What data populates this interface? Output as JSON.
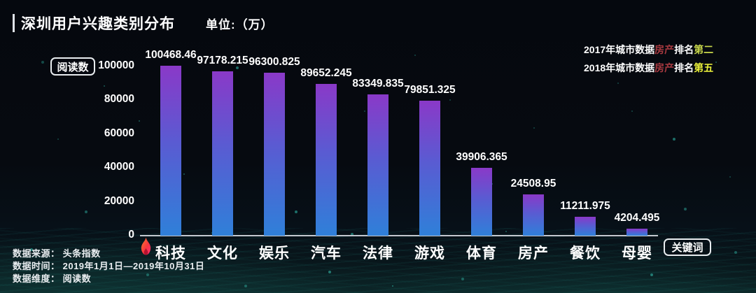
{
  "header": {
    "title": "深圳用户兴趣类别分布",
    "unit_label": "单位:（万）"
  },
  "legend": {
    "lines": [
      {
        "segments": [
          {
            "text": "2017年城市数据",
            "color": "#ffffff"
          },
          {
            "text": "房产",
            "color": "#a93a40"
          },
          {
            "text": "排名",
            "color": "#ffffff"
          },
          {
            "text": "第二",
            "color": "#c9d84b"
          }
        ]
      },
      {
        "segments": [
          {
            "text": "2018年城市数据",
            "color": "#ffffff"
          },
          {
            "text": "房产",
            "color": "#a93a40"
          },
          {
            "text": "排名",
            "color": "#ffffff"
          },
          {
            "text": "第五",
            "color": "#ecf23a"
          }
        ]
      }
    ]
  },
  "badges": {
    "reading": "阅读数",
    "keyword": "关键词"
  },
  "footer": {
    "source": "数据来源： 头条指数",
    "time": "数据时间： 2019年1月1日—2019年10月31日",
    "dimension": "数据维度： 阅读数"
  },
  "chart_data": {
    "type": "bar",
    "title": "深圳用户兴趣类别分布",
    "unit": "万",
    "ylabel": "阅读数",
    "xlabel": "关键词",
    "categories": [
      "科技",
      "文化",
      "娱乐",
      "汽车",
      "法律",
      "游戏",
      "体育",
      "房产",
      "餐饮",
      "母婴"
    ],
    "values": [
      100468.46,
      97178.215,
      96300.825,
      89652.245,
      83349.835,
      79851.325,
      39906.365,
      24508.95,
      11211.975,
      4204.495
    ],
    "value_labels": [
      "100468.46",
      "97178.215",
      "96300.825",
      "89652.245",
      "83349.835",
      "79851.325",
      "39906.365",
      "24508.95",
      "11211.975",
      "4204.495"
    ],
    "yticks": [
      0,
      20000,
      40000,
      60000,
      80000,
      100000
    ],
    "ylim": [
      0,
      100000
    ],
    "grid": false,
    "legend_position": "top-right",
    "bar_gradient_top": "#8a39c8",
    "bar_gradient_bottom": "#2f80d9",
    "highlight_flame_category": "科技"
  }
}
